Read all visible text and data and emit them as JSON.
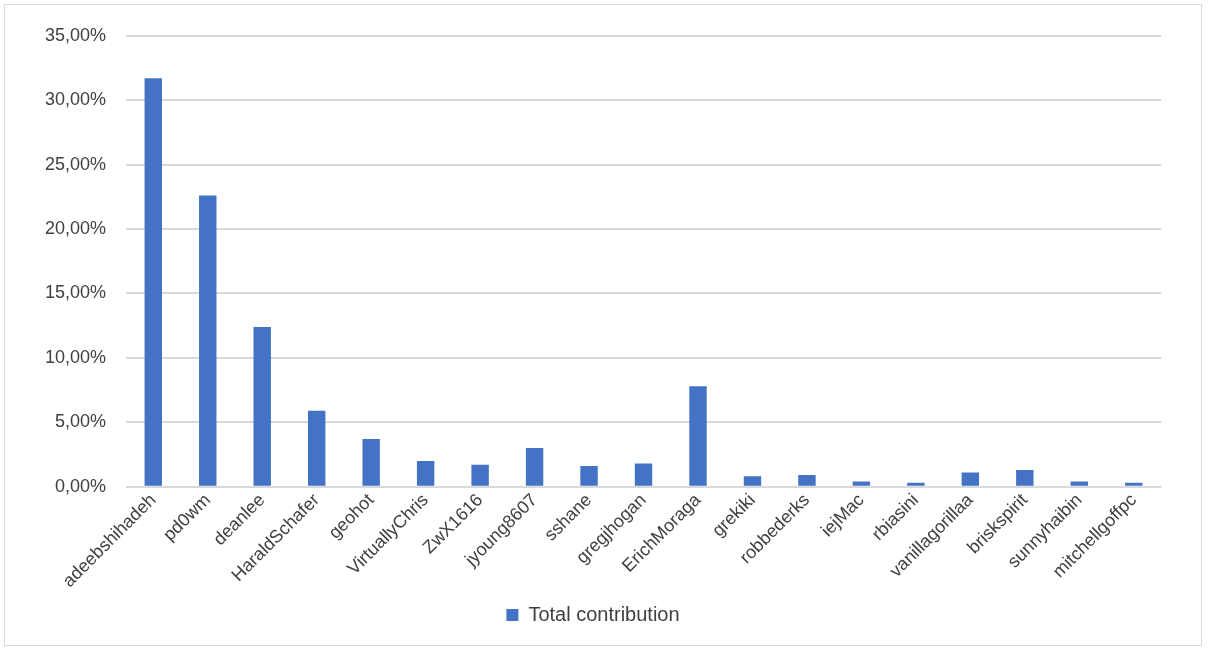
{
  "chart_data": {
    "type": "bar",
    "categories": [
      "adeebshihadeh",
      "pd0wm",
      "deanlee",
      "HaraldSchafer",
      "geohot",
      "VirtuallyChris",
      "ZwX1616",
      "jyoung8607",
      "sshane",
      "gregjhogan",
      "ErichMoraga",
      "grekiki",
      "robbederks",
      "iejMac",
      "rbiasini",
      "vanillagorillaa",
      "briskspirit",
      "sunnyhaibin",
      "mitchellgoffpc"
    ],
    "series": [
      {
        "name": "Total contribution",
        "color": "#4472c4",
        "values": [
          31.7,
          22.6,
          12.4,
          5.9,
          3.7,
          2.0,
          1.7,
          3.0,
          1.6,
          1.8,
          7.8,
          0.8,
          0.9,
          0.4,
          0.3,
          1.1,
          1.3,
          0.4,
          0.3
        ]
      }
    ],
    "ylim": [
      0,
      35
    ],
    "yticks": [
      {
        "value": 0,
        "label": "0,00%"
      },
      {
        "value": 5,
        "label": "5,00%"
      },
      {
        "value": 10,
        "label": "10,00%"
      },
      {
        "value": 15,
        "label": "15,00%"
      },
      {
        "value": 20,
        "label": "20,00%"
      },
      {
        "value": 25,
        "label": "25,00%"
      },
      {
        "value": 30,
        "label": "30,00%"
      },
      {
        "value": 35,
        "label": "35,00%"
      }
    ],
    "grid": "y",
    "legend": "bottom"
  }
}
